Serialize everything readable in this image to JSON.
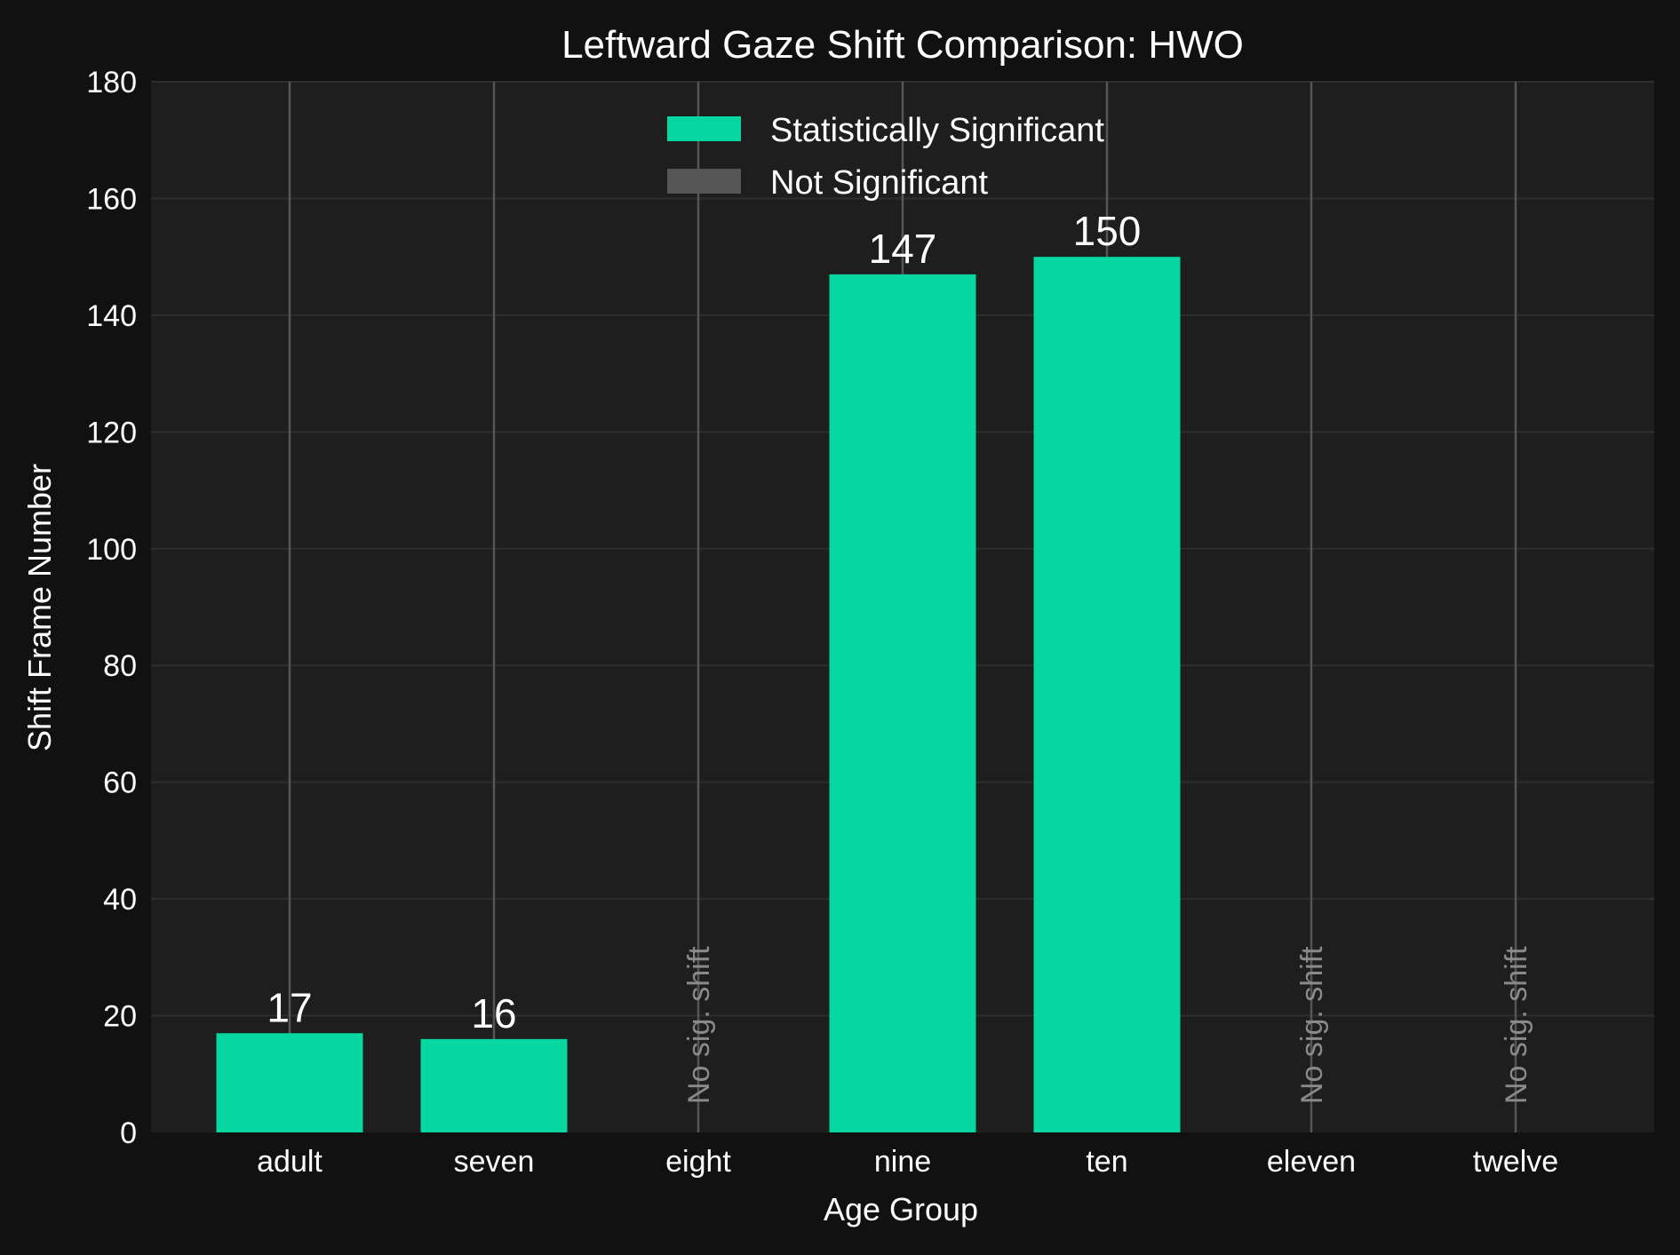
{
  "chart_data": {
    "type": "bar",
    "title": "Leftward Gaze Shift Comparison: HWO",
    "xlabel": "Age Group",
    "ylabel": "Shift Frame Number",
    "ylim": [
      0,
      180
    ],
    "yticks": [
      0,
      20,
      40,
      60,
      80,
      100,
      120,
      140,
      160,
      180
    ],
    "categories": [
      "adult",
      "seven",
      "eight",
      "nine",
      "ten",
      "eleven",
      "twelve"
    ],
    "values": [
      17,
      16,
      null,
      147,
      150,
      null,
      null
    ],
    "value_labels": [
      "17",
      "16",
      "",
      "147",
      "150",
      "",
      ""
    ],
    "no_sig_label": "No sig. shift",
    "legend": {
      "placement": "top-center",
      "entries": [
        {
          "label": "Statistically Significant",
          "color": "#06d6a0"
        },
        {
          "label": "Not Significant",
          "color": "#555555"
        }
      ]
    },
    "grid": true,
    "colors": {
      "significant": "#06d6a0",
      "not_significant": "#555555",
      "background": "#111111",
      "plot_background": "#1e1e1e",
      "grid": "#2e2e2e",
      "category_line": "#555555"
    }
  }
}
